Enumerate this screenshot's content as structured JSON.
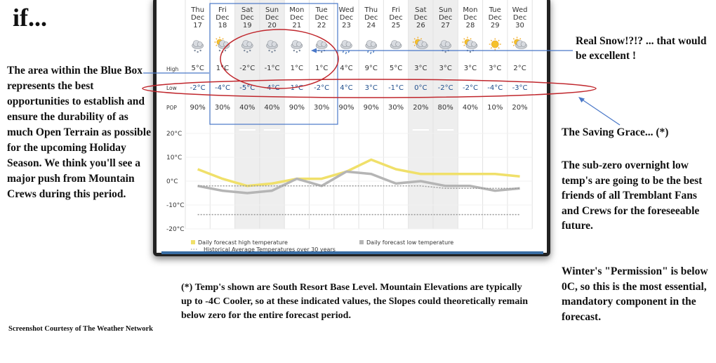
{
  "page": {
    "title": "if...",
    "left_note": "The area within the Blue Box represents the best opportunities to establish and ensure the durability of as much Open Terrain as possible for the upcoming Holiday Season. We think you'll see a major push from Mountain Crews during this period.",
    "real_snow_note": "Real Snow!?!? ... that would be excellent !",
    "saving_grace_title": "The Saving Grace... (*)",
    "saving_grace_body": "The sub-zero overnight low temp's are going to be the best friends of all Tremblant Fans and Crews for the foreseeable future.",
    "permission_note": "Winter's \"Permission\" is below 0C, so this is the most essential, mandatory component in the forecast.",
    "footnote": "(*) Temp's shown are South Resort Base Level. Mountain Elevations are typically up to -4C Cooler, so at these indicated values, the Slopes could theoretically remain below zero for the entire forecast period.",
    "credit": "Screenshot Courtesy of The Weather Network"
  },
  "forecast": {
    "row_labels": {
      "high": "High",
      "low": "Low",
      "pop": "POP"
    },
    "days": [
      {
        "dow": "Thu",
        "month": "Dec",
        "day": "17",
        "icon": "cloud-snow-icon",
        "high": "5°C",
        "low": "-2°C",
        "pop": "90%"
      },
      {
        "dow": "Fri",
        "month": "Dec",
        "day": "18",
        "icon": "sun-cloud-snow-icon",
        "high": "1°C",
        "low": "-4°C",
        "pop": "30%"
      },
      {
        "dow": "Sat",
        "month": "Dec",
        "day": "19",
        "icon": "cloud-snow-icon",
        "high": "-2°C",
        "low": "-5°C",
        "pop": "40%"
      },
      {
        "dow": "Sun",
        "month": "Dec",
        "day": "20",
        "icon": "cloud-snow-icon",
        "high": "-1°C",
        "low": "-4°C",
        "pop": "40%"
      },
      {
        "dow": "Mon",
        "month": "Dec",
        "day": "21",
        "icon": "cloud-snow-icon",
        "high": "1°C",
        "low": "1°C",
        "pop": "90%"
      },
      {
        "dow": "Tue",
        "month": "Dec",
        "day": "22",
        "icon": "cloud-snow-icon",
        "high": "1°C",
        "low": "-2°C",
        "pop": "30%"
      },
      {
        "dow": "Wed",
        "month": "Dec",
        "day": "23",
        "icon": "cloud-rain-icon",
        "high": "4°C",
        "low": "4°C",
        "pop": "90%"
      },
      {
        "dow": "Thu",
        "month": "Dec",
        "day": "24",
        "icon": "cloud-rain-icon",
        "high": "9°C",
        "low": "3°C",
        "pop": "90%"
      },
      {
        "dow": "Fri",
        "month": "Dec",
        "day": "25",
        "icon": "cloud-icon",
        "high": "5°C",
        "low": "-1°C",
        "pop": "30%"
      },
      {
        "dow": "Sat",
        "month": "Dec",
        "day": "26",
        "icon": "sun-cloud-icon",
        "high": "3°C",
        "low": "0°C",
        "pop": "20%"
      },
      {
        "dow": "Sun",
        "month": "Dec",
        "day": "27",
        "icon": "cloud-snow-icon",
        "high": "3°C",
        "low": "-2°C",
        "pop": "80%"
      },
      {
        "dow": "Mon",
        "month": "Dec",
        "day": "28",
        "icon": "sun-cloud-snow-icon",
        "high": "3°C",
        "low": "-2°C",
        "pop": "40%"
      },
      {
        "dow": "Tue",
        "month": "Dec",
        "day": "29",
        "icon": "sun-icon",
        "high": "3°C",
        "low": "-4°C",
        "pop": "10%"
      },
      {
        "dow": "Wed",
        "month": "Dec",
        "day": "30",
        "icon": "sun-cloud-icon",
        "high": "2°C",
        "low": "-3°C",
        "pop": "20%"
      }
    ]
  },
  "chart_data": {
    "type": "line",
    "x": [
      "Dec 17",
      "Dec 18",
      "Dec 19",
      "Dec 20",
      "Dec 21",
      "Dec 22",
      "Dec 23",
      "Dec 24",
      "Dec 25",
      "Dec 26",
      "Dec 27",
      "Dec 28",
      "Dec 29",
      "Dec 30"
    ],
    "series": [
      {
        "name": "Daily forecast high temperature",
        "values": [
          5,
          1,
          -2,
          -1,
          1,
          1,
          4,
          9,
          5,
          3,
          3,
          3,
          3,
          2
        ],
        "color": "#f0e06a"
      },
      {
        "name": "Daily forecast low temperature",
        "values": [
          -2,
          -4,
          -5,
          -4,
          1,
          -2,
          4,
          3,
          -1,
          0,
          -2,
          -2,
          -4,
          -3
        ],
        "color": "#b5b5b5"
      },
      {
        "name": "Historical Average Temperatures over 30 years",
        "values": [
          -2,
          -2,
          -2,
          -2,
          -2,
          -2,
          -2,
          -2,
          -2,
          -2,
          -3,
          -3,
          -3,
          -3
        ],
        "color": "#999999",
        "style": "dotted"
      },
      {
        "name": "",
        "values": [
          -14,
          -14,
          -14,
          -14,
          -14,
          -14,
          -14,
          -14,
          -14,
          -14,
          -14,
          -14,
          -14,
          -14
        ],
        "color": "#999999",
        "style": "dotted"
      }
    ],
    "y_ticks": [
      "20°C",
      "10°C",
      "0°C",
      "-10°C",
      "-20°C"
    ],
    "ylim": [
      -20,
      20
    ],
    "grid": true,
    "legend_position": "bottom"
  },
  "colors": {
    "high_temp": "#f0e06a",
    "low_temp": "#b5b5b5",
    "low_text": "#1f4e8c",
    "blue_box": "#4a78c8",
    "red_ellipse": "#c0272d",
    "weekend_shade": "#eeeeee",
    "panel_footer": "#3a6ea5"
  }
}
